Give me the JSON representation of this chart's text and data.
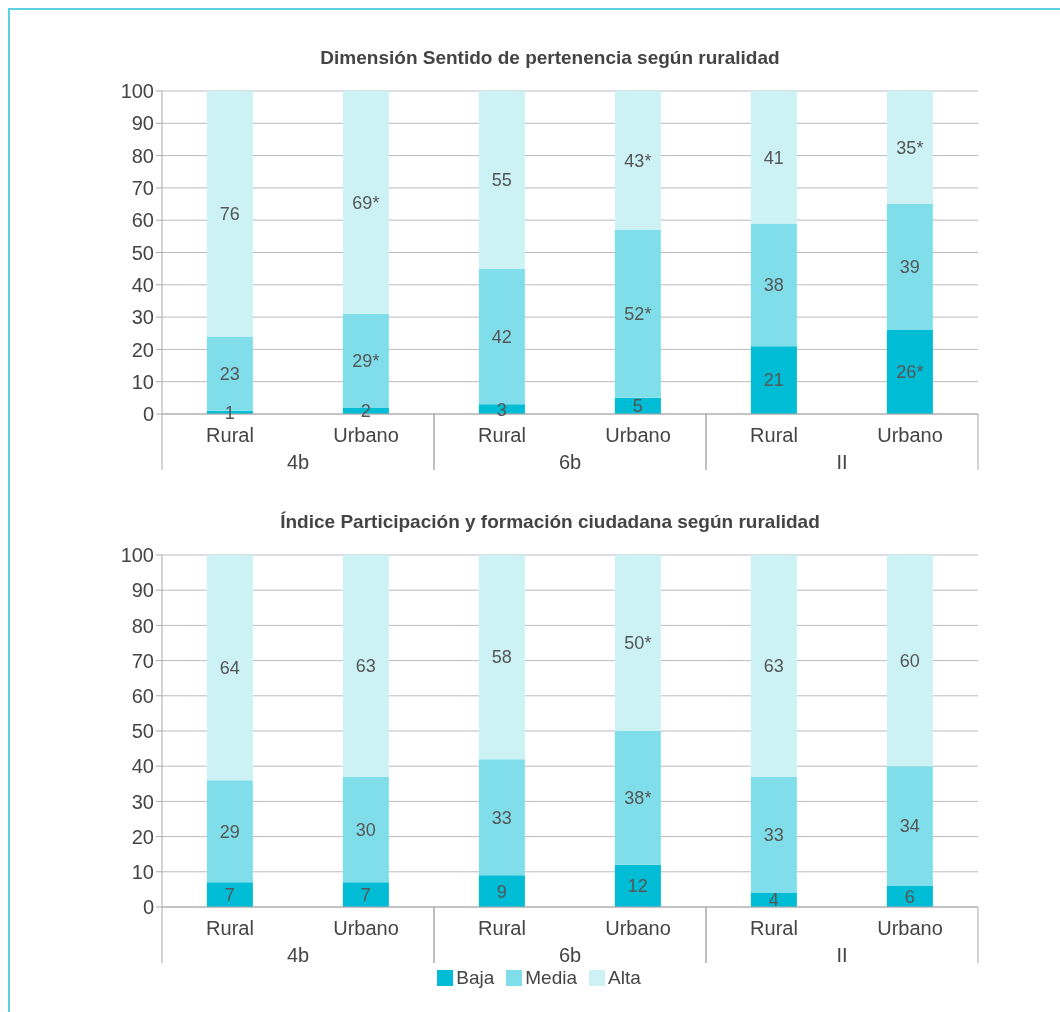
{
  "chart_data": [
    {
      "type": "bar",
      "stacked": true,
      "title": "Dimensión Sentido de pertenencia según ruralidad",
      "categories": [
        "Rural",
        "Urbano",
        "Rural",
        "Urbano",
        "Rural",
        "Urbano"
      ],
      "annotations": [
        "4b",
        "6b",
        "II"
      ],
      "ylim": [
        0,
        100
      ],
      "yticks": [
        0,
        10,
        20,
        30,
        40,
        50,
        60,
        70,
        80,
        90,
        100
      ],
      "grid": "y",
      "legend": false,
      "series": [
        {
          "color": "#00bcd4",
          "values": [
            1,
            2,
            3,
            5,
            21,
            26
          ],
          "value_labels": [
            "1",
            "2",
            "3",
            "5",
            "21",
            "26*"
          ]
        },
        {
          "color": "#80deea",
          "values": [
            23,
            29,
            42,
            52,
            38,
            39
          ],
          "value_labels": [
            "23",
            "29*",
            "42",
            "52*",
            "38",
            "39"
          ]
        },
        {
          "color": "#ccf2f6",
          "values": [
            76,
            69,
            55,
            43,
            41,
            35
          ],
          "value_labels": [
            "76",
            "69*",
            "55",
            "43*",
            "41",
            "35*"
          ]
        }
      ]
    },
    {
      "type": "bar",
      "stacked": true,
      "title": "Índice Participación y formación ciudadana según ruralidad",
      "categories": [
        "Rural",
        "Urbano",
        "Rural",
        "Urbano",
        "Rural",
        "Urbano"
      ],
      "annotations": [
        "4b",
        "6b",
        "II"
      ],
      "ylim": [
        0,
        100
      ],
      "yticks": [
        0,
        10,
        20,
        30,
        40,
        50,
        60,
        70,
        80,
        90,
        100
      ],
      "grid": "y",
      "legend": "bottom",
      "series": [
        {
          "name": "Baja",
          "color": "#00bcd4",
          "values": [
            7,
            7,
            9,
            12,
            4,
            6
          ],
          "value_labels": [
            "7",
            "7",
            "9",
            "12",
            "4",
            "6"
          ]
        },
        {
          "name": "Media",
          "color": "#80deea",
          "values": [
            29,
            30,
            33,
            38,
            33,
            34
          ],
          "value_labels": [
            "29",
            "30",
            "33",
            "38*",
            "33",
            "34"
          ]
        },
        {
          "name": "Alta",
          "color": "#ccf2f6",
          "values": [
            64,
            63,
            58,
            50,
            63,
            60
          ],
          "value_labels": [
            "64",
            "63",
            "58",
            "50*",
            "63",
            "60"
          ]
        }
      ]
    }
  ]
}
